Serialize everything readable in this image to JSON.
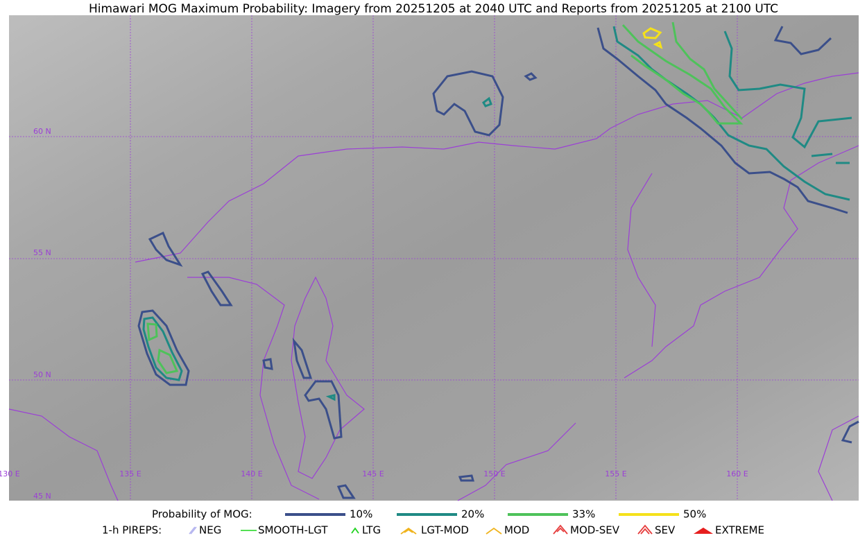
{
  "title": "Himawari MOG Maximum Probability: Imagery from 20251205 at 2040 UTC and Reports from 20251205 at 2100 UTC",
  "map": {
    "lat_labels": [
      "60 N",
      "55 N",
      "50 N",
      "45 N"
    ],
    "lon_labels": [
      "130 E",
      "135 E",
      "140 E",
      "145 E",
      "150 E",
      "155 E",
      "160 E"
    ]
  },
  "legend": {
    "probability": {
      "label": "Probability of MOG:",
      "items": [
        {
          "label": "10%",
          "color": "#3b4f8a"
        },
        {
          "label": "20%",
          "color": "#1f8a84"
        },
        {
          "label": "33%",
          "color": "#4ec25a"
        },
        {
          "label": "50%",
          "color": "#f5e11a"
        }
      ]
    },
    "pireps": {
      "label": "1-h PIREPS:",
      "items": [
        {
          "label": "NEG",
          "color": "#b8b8f0"
        },
        {
          "label": "SMOOTH-LGT",
          "color": "#3cdc3c"
        },
        {
          "label": "LTG",
          "color": "#1ed21e"
        },
        {
          "label": "LGT-MOD",
          "color": "#f0b41e"
        },
        {
          "label": "MOD",
          "color": "#f0b41e"
        },
        {
          "label": "MOD-SEV",
          "color": "#e63c3c"
        },
        {
          "label": "SEV",
          "color": "#e63c3c"
        },
        {
          "label": "EXTREME",
          "color": "#e61e1e"
        }
      ]
    }
  }
}
